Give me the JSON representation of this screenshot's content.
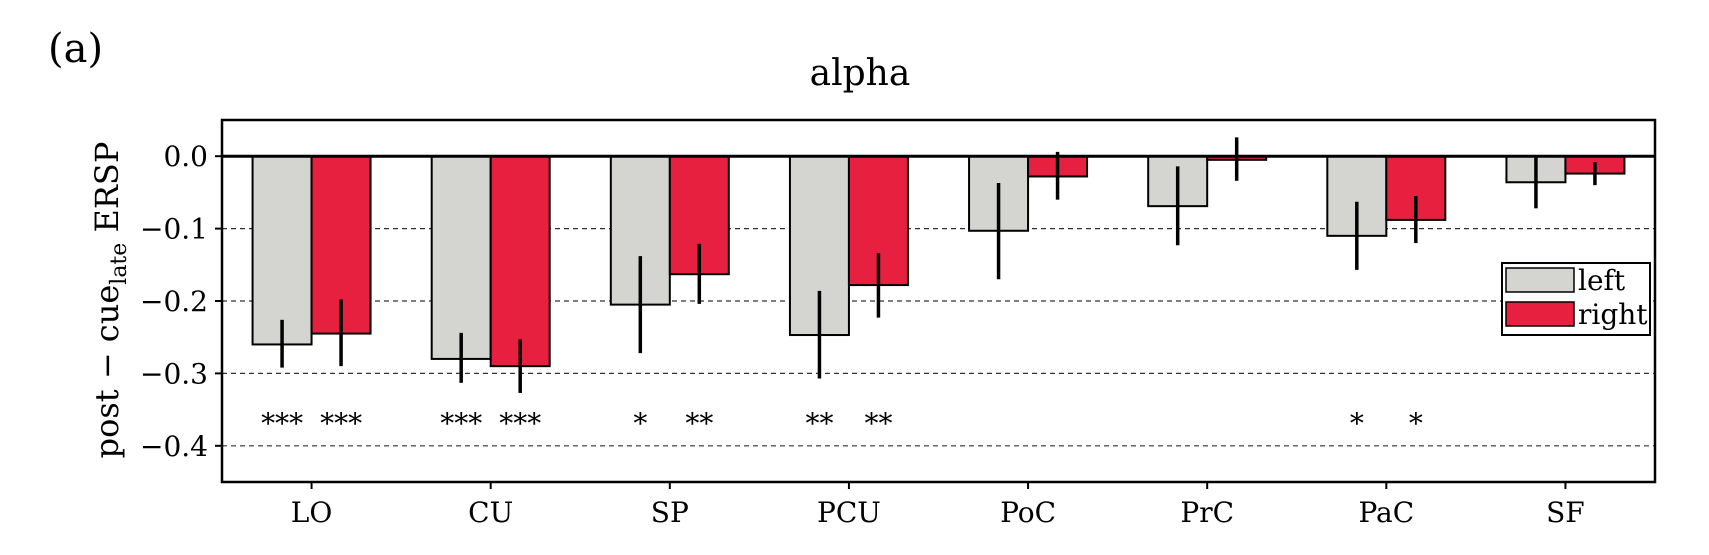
{
  "panel_label": "(a)",
  "chart_data": {
    "type": "bar",
    "title": "alpha",
    "ylabel": "post − cue",
    "ylabel_subscript": "late",
    "ylabel_suffix": " ERSP",
    "xlabel": "",
    "ylim": [
      -0.45,
      0.05
    ],
    "yticks": [
      0.0,
      -0.1,
      -0.2,
      -0.3,
      -0.4
    ],
    "ytick_labels": [
      "0.0",
      "−0.1",
      "−0.2",
      "−0.3",
      "−0.4"
    ],
    "grid": "dashed horizontal at y ticks",
    "legend_position": "right",
    "categories": [
      "LO",
      "CU",
      "SP",
      "PCU",
      "PoC",
      "PrC",
      "PaC",
      "SF"
    ],
    "series": [
      {
        "name": "left",
        "color": "#d4d4d0",
        "values": [
          -0.26,
          -0.28,
          -0.205,
          -0.247,
          -0.103,
          -0.069,
          -0.11,
          -0.036
        ],
        "err_low": [
          -0.292,
          -0.313,
          -0.272,
          -0.307,
          -0.17,
          -0.123,
          -0.157,
          -0.072
        ],
        "err_high": [
          -0.226,
          -0.244,
          -0.138,
          -0.186,
          -0.037,
          -0.014,
          -0.063,
          -0.002
        ],
        "significance": [
          "***",
          "***",
          "*",
          "**",
          "",
          "",
          "*",
          ""
        ]
      },
      {
        "name": "right",
        "color": "#e8203f",
        "values": [
          -0.245,
          -0.29,
          -0.163,
          -0.178,
          -0.028,
          -0.005,
          -0.088,
          -0.024
        ],
        "err_low": [
          -0.29,
          -0.327,
          -0.204,
          -0.223,
          -0.06,
          -0.034,
          -0.12,
          -0.04
        ],
        "err_high": [
          -0.198,
          -0.253,
          -0.121,
          -0.134,
          0.006,
          0.026,
          -0.055,
          -0.008
        ],
        "significance": [
          "***",
          "***",
          "**",
          "**",
          "",
          "",
          "*",
          ""
        ]
      }
    ]
  }
}
